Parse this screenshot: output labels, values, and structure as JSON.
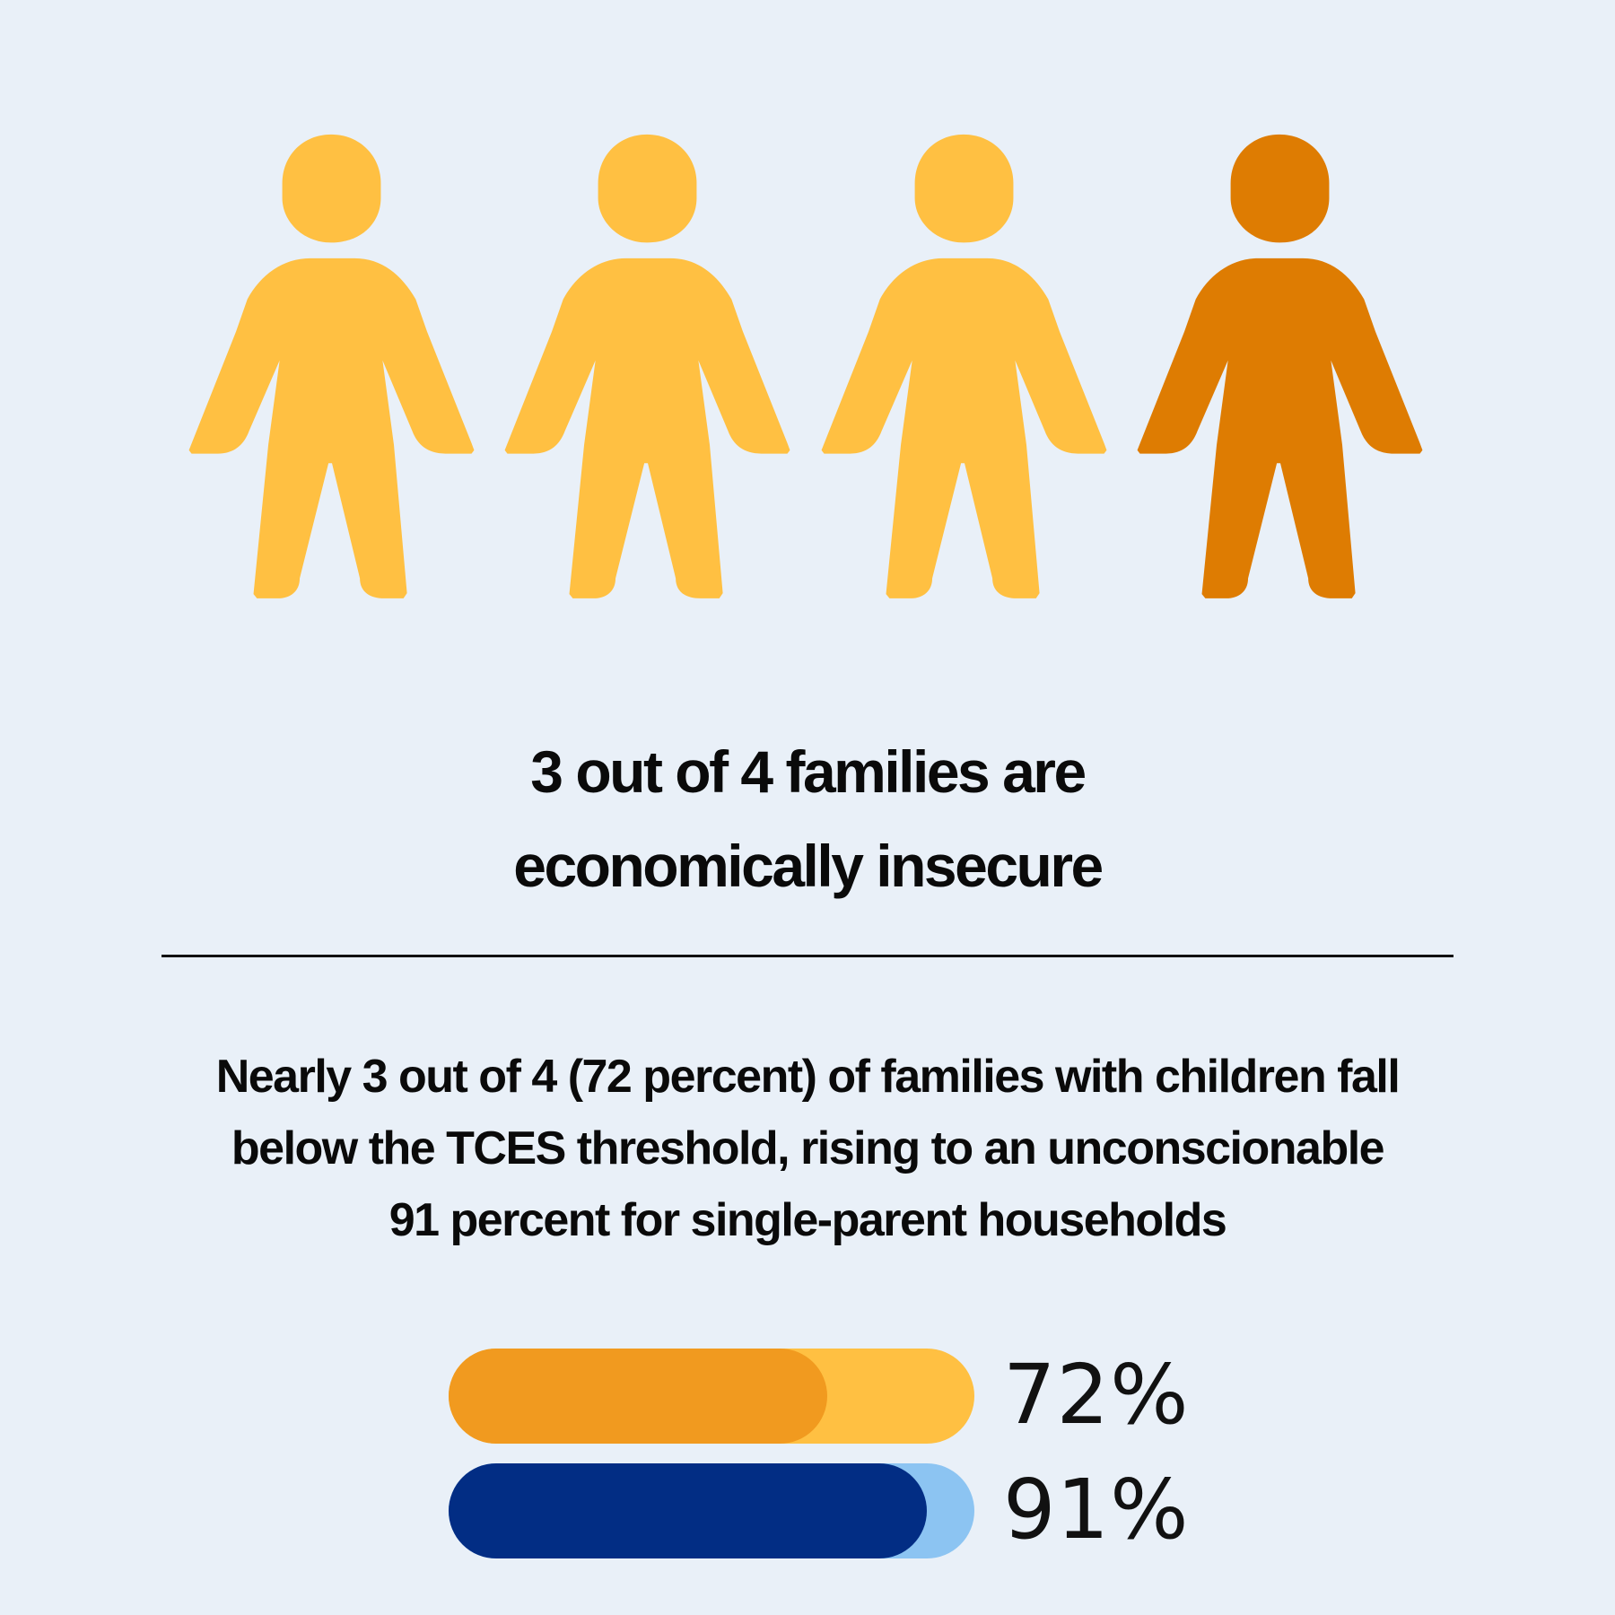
{
  "headline": {
    "line1": "3 out of 4 families are",
    "line2": "economically insecure"
  },
  "description": {
    "line1": "Nearly 3 out of 4 (72 percent) of families with children fall",
    "line2": "below the TCES threshold, rising to an unconscionable",
    "line3": "91 percent for single-parent households"
  },
  "chart_data": [
    {
      "type": "pictogram",
      "total": 4,
      "highlighted": 1,
      "icon": "person-icon",
      "colors": {
        "base": "#FFC042",
        "highlight": "#DE7C02"
      }
    },
    {
      "type": "bar",
      "orientation": "horizontal",
      "unit": "%",
      "ylim": [
        0,
        100
      ],
      "bars": [
        {
          "value": 72,
          "label": "72%",
          "fill_color": "#F19A1F",
          "track_color": "#FFC042"
        },
        {
          "value": 91,
          "label": "91%",
          "fill_color": "#022D84",
          "track_color": "#8CC4F2"
        }
      ]
    }
  ]
}
